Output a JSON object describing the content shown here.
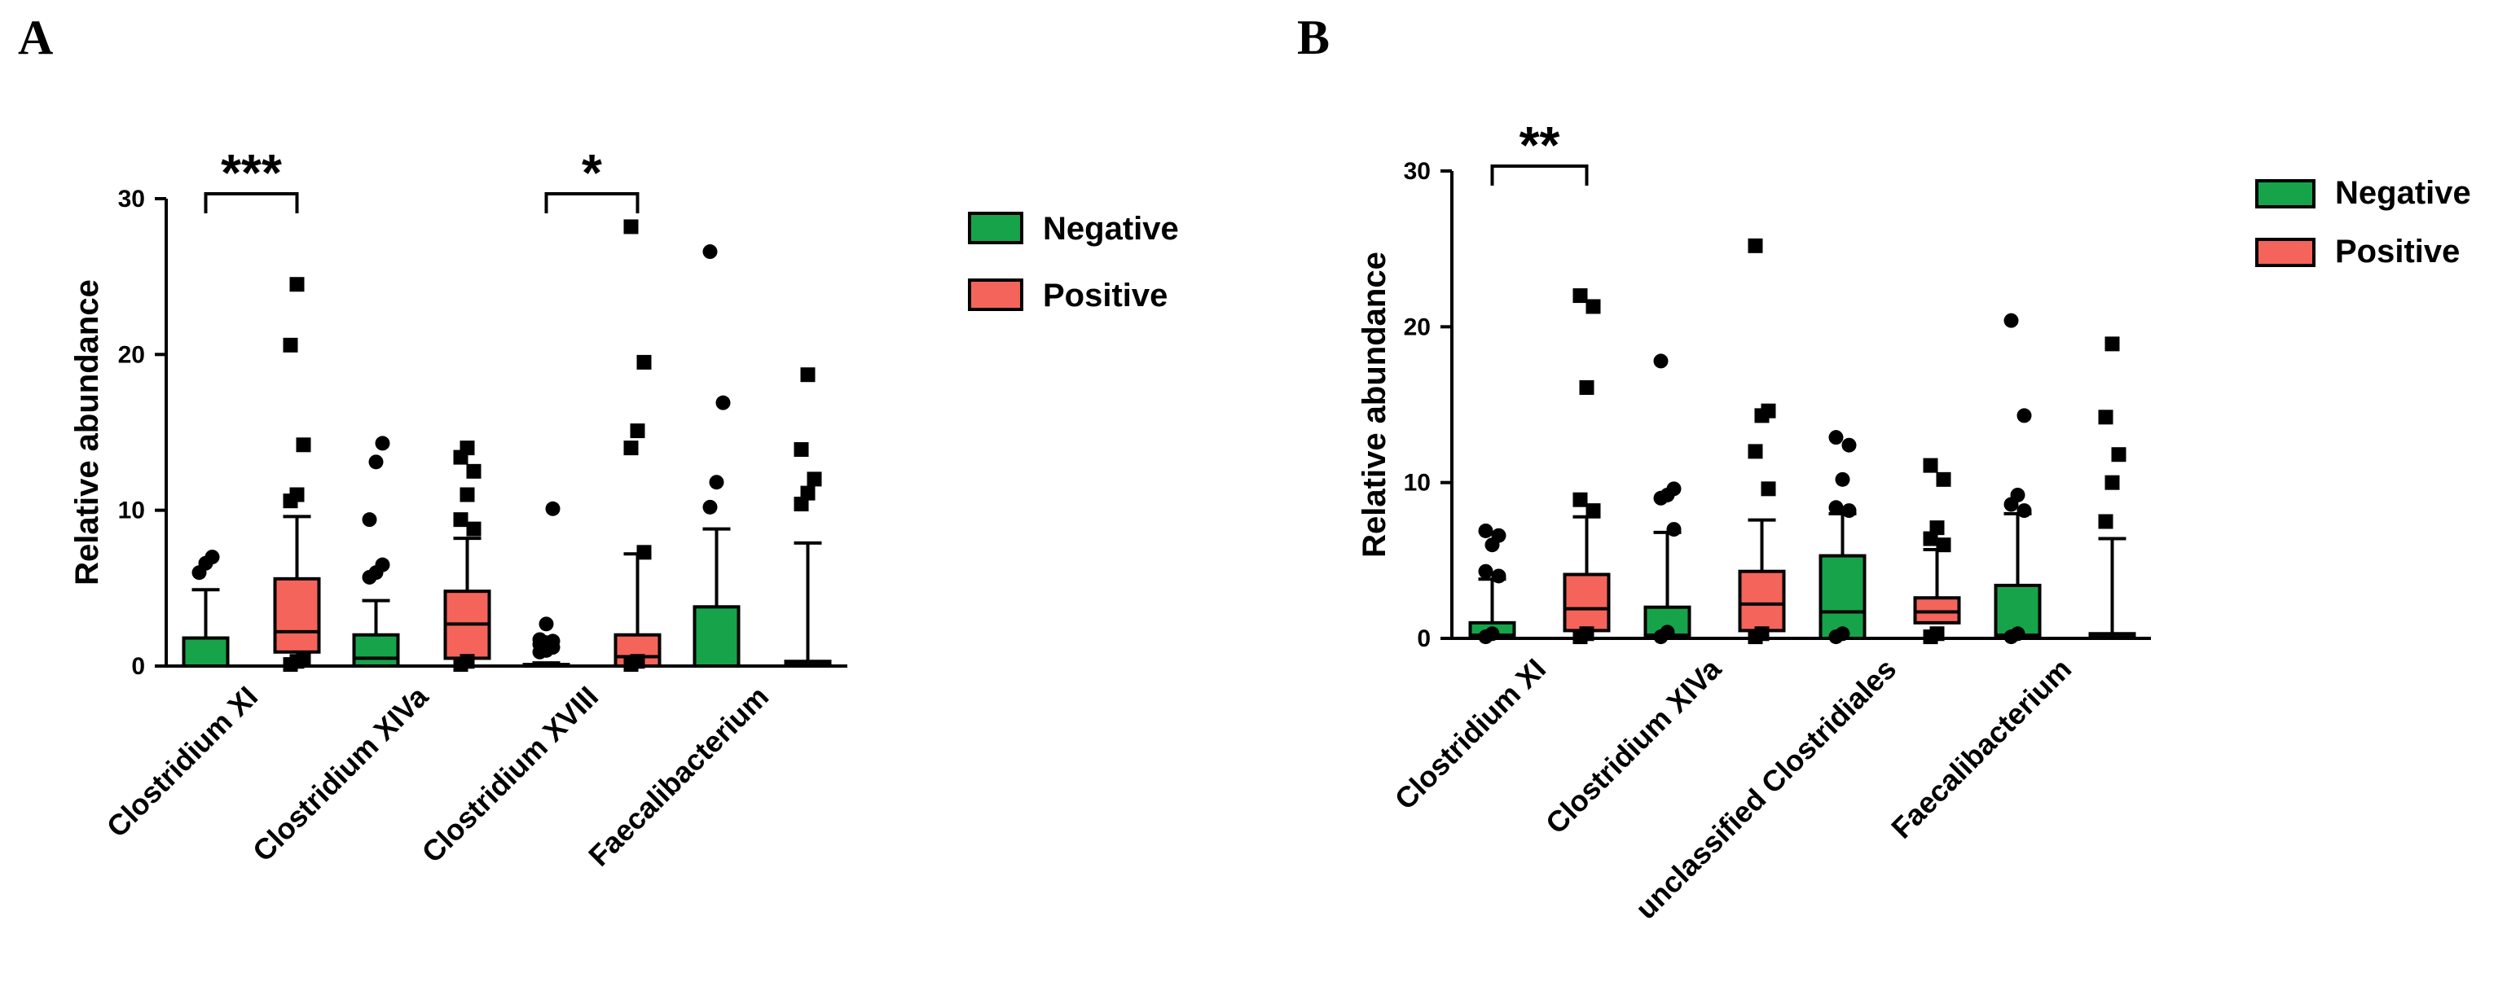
{
  "panels": [
    {
      "letter": "A"
    },
    {
      "letter": "B"
    }
  ],
  "colors": {
    "negative": "#17a34a",
    "positive": "#f4645a",
    "stroke": "#000000"
  },
  "chart_data": [
    {
      "type": "box",
      "panel": "A",
      "ylabel": "Relative abundance",
      "ylim": [
        0,
        30
      ],
      "yticks": [
        0,
        10,
        20,
        30
      ],
      "legend": {
        "position": "right",
        "entries": [
          "Negative",
          "Positive"
        ]
      },
      "categories": [
        "Clostridium XI",
        "Clostridium XIVa",
        "Clostridium XVIII",
        "Faecalibacterium"
      ],
      "series": [
        {
          "name": "Negative",
          "boxes": [
            {
              "whisker_low": 0,
              "q1": 0,
              "median": 0,
              "q3": 1.8,
              "whisker_high": 4.9,
              "outliers": [
                6.0,
                6.6,
                7.0
              ]
            },
            {
              "whisker_low": 0,
              "q1": 0,
              "median": 0.5,
              "q3": 2.0,
              "whisker_high": 4.2,
              "outliers": [
                5.7,
                6.0,
                6.5,
                9.4,
                13.1,
                14.3
              ]
            },
            {
              "whisker_low": 0,
              "q1": 0,
              "median": 0,
              "q3": 0.1,
              "whisker_high": 0.2,
              "outliers": [
                0.9,
                1.0,
                1.2,
                1.4,
                1.5,
                1.6,
                1.7,
                2.7,
                10.1
              ]
            },
            {
              "whisker_low": 0,
              "q1": 0,
              "median": 0,
              "q3": 3.8,
              "whisker_high": 8.8,
              "outliers": [
                10.2,
                11.8,
                16.9,
                26.6
              ]
            }
          ]
        },
        {
          "name": "Positive",
          "boxes": [
            {
              "whisker_low": 0,
              "q1": 0.9,
              "median": 2.2,
              "q3": 5.6,
              "whisker_high": 9.6,
              "outliers": [
                0.1,
                0.3,
                0.5,
                10.6,
                11.0,
                14.2,
                20.6,
                24.5
              ]
            },
            {
              "whisker_low": 0,
              "q1": 0.5,
              "median": 2.7,
              "q3": 4.8,
              "whisker_high": 8.2,
              "outliers": [
                0.1,
                0.3,
                8.8,
                9.4,
                11.0,
                12.5,
                13.4,
                14.0
              ]
            },
            {
              "whisker_low": 0,
              "q1": 0,
              "median": 0.6,
              "q3": 2.0,
              "whisker_high": 7.2,
              "outliers": [
                0.1,
                0.3,
                7.3,
                14.0,
                15.1,
                19.5,
                28.2
              ]
            },
            {
              "whisker_low": 0,
              "q1": 0,
              "median": 0.1,
              "q3": 0.3,
              "whisker_high": 7.9,
              "outliers": [
                10.4,
                11.1,
                12.0,
                13.9,
                18.7
              ]
            }
          ]
        }
      ],
      "annotations": [
        {
          "category_index": 0,
          "text": "***"
        },
        {
          "category_index": 2,
          "text": "*"
        }
      ]
    },
    {
      "type": "box",
      "panel": "B",
      "ylabel": "Relative abundance",
      "ylim": [
        0,
        30
      ],
      "yticks": [
        0,
        10,
        20,
        30
      ],
      "legend": {
        "position": "top-right",
        "entries": [
          "Negative",
          "Positive"
        ]
      },
      "categories": [
        "Clostridium XI",
        "Clostridium XIVa",
        "unclassified Clostridiales",
        "Faecalibacterium"
      ],
      "series": [
        {
          "name": "Negative",
          "boxes": [
            {
              "whisker_low": 0,
              "q1": 0,
              "median": 0.2,
              "q3": 1.0,
              "whisker_high": 3.8,
              "outliers": [
                0.1,
                0.3,
                4.0,
                4.3,
                6.0,
                6.6,
                6.9
              ]
            },
            {
              "whisker_low": 0,
              "q1": 0,
              "median": 0.2,
              "q3": 2.0,
              "whisker_high": 6.8,
              "outliers": [
                0.1,
                0.4,
                7.0,
                9.0,
                9.2,
                9.6,
                17.8
              ]
            },
            {
              "whisker_low": 0,
              "q1": 0,
              "median": 1.7,
              "q3": 5.3,
              "whisker_high": 8.0,
              "outliers": [
                0.1,
                0.3,
                8.2,
                8.4,
                10.2,
                12.4,
                12.9
              ]
            },
            {
              "whisker_low": 0,
              "q1": 0,
              "median": 0.2,
              "q3": 3.4,
              "whisker_high": 8.0,
              "outliers": [
                0.1,
                0.3,
                8.2,
                8.6,
                9.2,
                14.3,
                20.4
              ]
            }
          ]
        },
        {
          "name": "Positive",
          "boxes": [
            {
              "whisker_low": 0,
              "q1": 0.5,
              "median": 1.9,
              "q3": 4.1,
              "whisker_high": 7.8,
              "outliers": [
                0.1,
                0.3,
                8.2,
                8.9,
                16.1,
                21.3,
                22.0
              ]
            },
            {
              "whisker_low": 0,
              "q1": 0.5,
              "median": 2.2,
              "q3": 4.3,
              "whisker_high": 7.6,
              "outliers": [
                0.1,
                0.3,
                9.6,
                12.0,
                14.3,
                14.6,
                25.2
              ]
            },
            {
              "whisker_low": 0,
              "q1": 1.0,
              "median": 1.7,
              "q3": 2.6,
              "whisker_high": 5.7,
              "outliers": [
                0.1,
                0.3,
                6.0,
                6.4,
                7.1,
                10.2,
                11.1
              ]
            },
            {
              "whisker_low": 0,
              "q1": 0,
              "median": 0.1,
              "q3": 0.3,
              "whisker_high": 6.4,
              "outliers": [
                7.5,
                10.0,
                11.8,
                14.2,
                18.9
              ]
            }
          ]
        }
      ],
      "annotations": [
        {
          "category_index": 0,
          "text": "**"
        }
      ]
    }
  ]
}
